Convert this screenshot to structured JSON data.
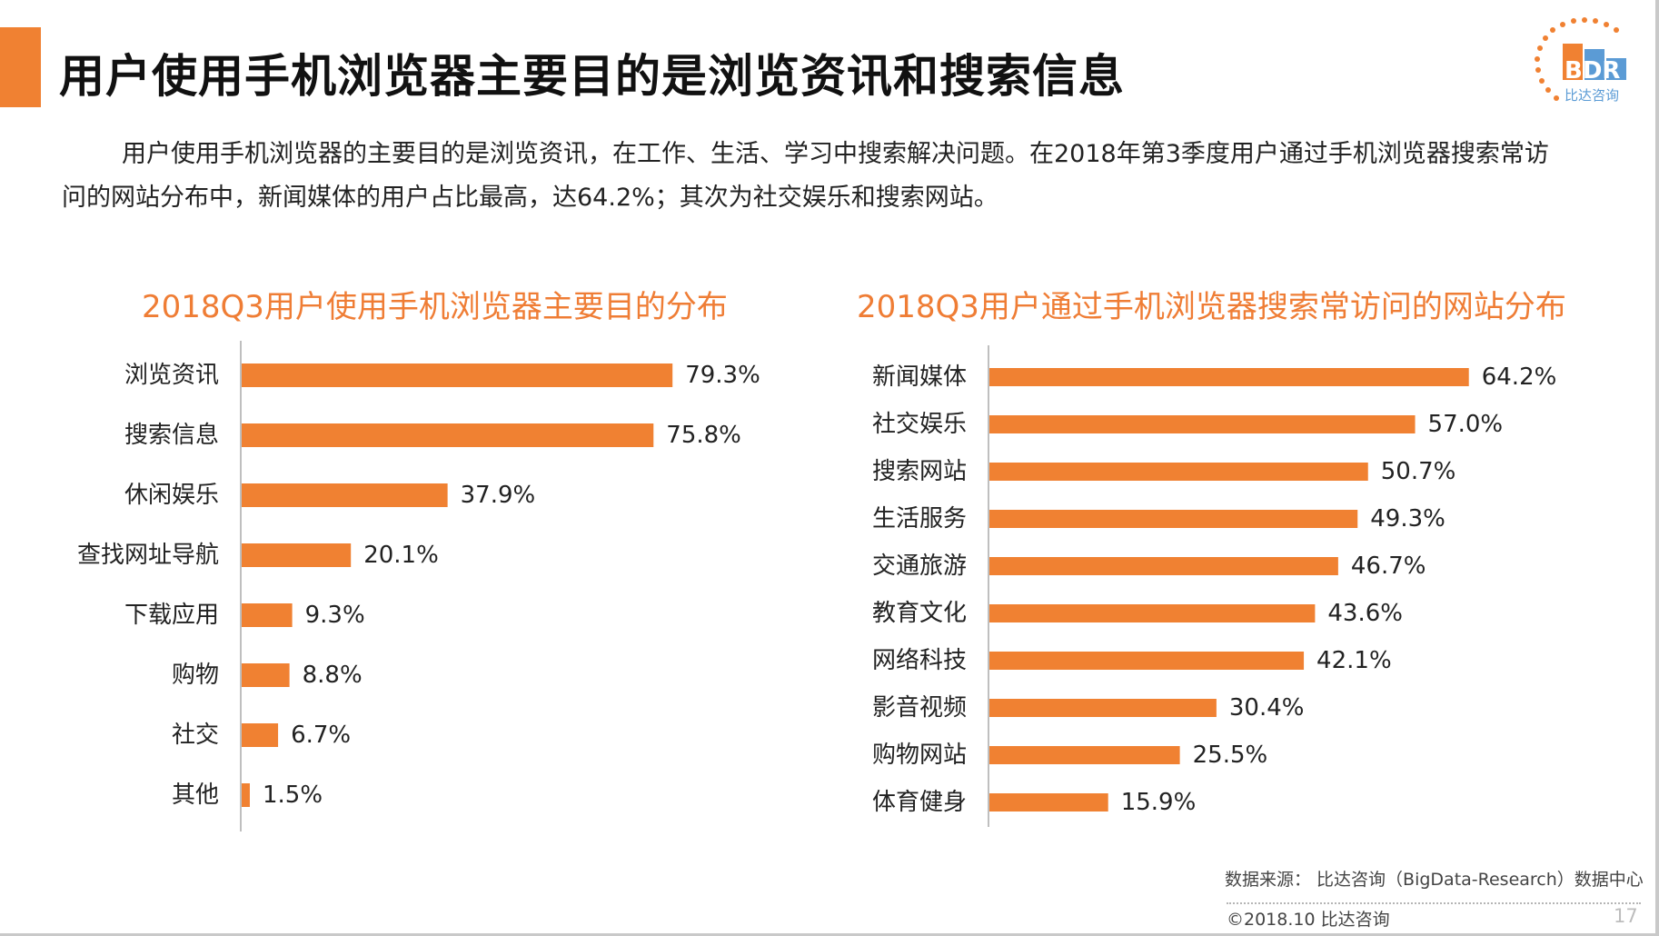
{
  "title": "用户使用手机浏览器主要目的是浏览资讯和搜索信息",
  "intro": "用户使用手机浏览器的主要目的是浏览资讯，在工作、生活、学习中搜索解决问题。在2018年第3季度用户通过手机浏览器搜索常访问的网站分布中，新闻媒体的用户占比最高，达64.2%；其次为社交娱乐和搜索网站。",
  "logo": {
    "text": "BDR",
    "subtext": "比达咨询"
  },
  "colors": {
    "bar": "#f08132",
    "title": "#ef7d35",
    "accent": "#f08132",
    "logo_blue": "#5b9bd5"
  },
  "chart_data": [
    {
      "type": "bar",
      "orientation": "horizontal",
      "title": "2018Q3用户使用手机浏览器主要目的分布",
      "categories": [
        "浏览资讯",
        "搜索信息",
        "休闲娱乐",
        "查找网址导航",
        "下载应用",
        "购物",
        "社交",
        "其他"
      ],
      "values": [
        79.3,
        75.8,
        37.9,
        20.1,
        9.3,
        8.8,
        6.7,
        1.5
      ],
      "value_labels": [
        "79.3%",
        "75.8%",
        "37.9%",
        "20.1%",
        "9.3%",
        "8.8%",
        "6.7%",
        "1.5%"
      ],
      "unit": "%",
      "grid": false,
      "legend": "none"
    },
    {
      "type": "bar",
      "orientation": "horizontal",
      "title": "2018Q3用户通过手机浏览器搜索常访问的网站分布",
      "categories": [
        "新闻媒体",
        "社交娱乐",
        "搜索网站",
        "生活服务",
        "交通旅游",
        "教育文化",
        "网络科技",
        "影音视频",
        "购物网站",
        "体育健身"
      ],
      "values": [
        64.2,
        57.0,
        50.7,
        49.3,
        46.7,
        43.6,
        42.1,
        30.4,
        25.5,
        15.9
      ],
      "value_labels": [
        "64.2%",
        "57.0%",
        "50.7%",
        "49.3%",
        "46.7%",
        "43.6%",
        "42.1%",
        "30.4%",
        "25.5%",
        "15.9%"
      ],
      "unit": "%",
      "grid": false,
      "legend": "none"
    }
  ],
  "footer": {
    "source": "数据来源： 比达咨询（BigData-Research）数据中心",
    "copyright": "©2018.10  比达咨询",
    "page": "17"
  }
}
